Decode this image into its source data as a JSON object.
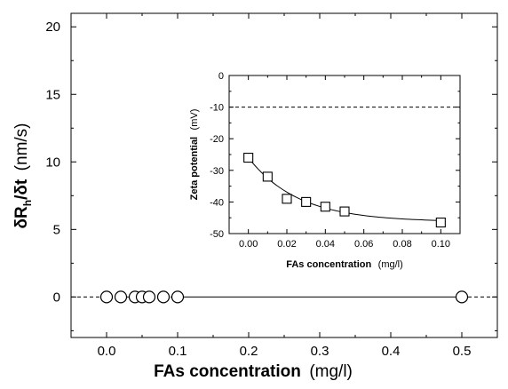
{
  "chart_data": [
    {
      "type": "scatter",
      "xlabel_bold": "FAs concentration",
      "xlabel_unit": "(mg/l)",
      "ylabel_main": "δR",
      "ylabel_sub": "h",
      "ylabel_rest": "/δt",
      "ylabel_unit": "(nm/s)",
      "xlim": [
        -0.05,
        0.55
      ],
      "ylim": [
        -3,
        21
      ],
      "xticks": [
        "0.0",
        "0.1",
        "0.2",
        "0.3",
        "0.4",
        "0.5"
      ],
      "yticks": [
        "0",
        "5",
        "10",
        "15",
        "20"
      ],
      "marker": "circle",
      "reference_line": 0,
      "series": [
        {
          "x": [
            0.0,
            0.02,
            0.04,
            0.05,
            0.06,
            0.08,
            0.1,
            0.5
          ],
          "y": [
            0,
            0,
            0,
            0,
            0,
            0,
            0,
            0
          ]
        }
      ]
    },
    {
      "type": "scatter",
      "inset": true,
      "xlabel_bold": "FAs concentration",
      "xlabel_unit": "(mg/l)",
      "ylabel_bold": "Zeta potential",
      "ylabel_unit": "(mV)",
      "xlim": [
        -0.01,
        0.11
      ],
      "ylim": [
        -50,
        0
      ],
      "xticks": [
        "0.00",
        "0.02",
        "0.04",
        "0.06",
        "0.08",
        "0.10"
      ],
      "yticks": [
        "0",
        "-10",
        "-20",
        "-30",
        "-40",
        "-50"
      ],
      "marker": "square",
      "reference_line": -10,
      "fit_curve": true,
      "series": [
        {
          "x": [
            0.0,
            0.01,
            0.02,
            0.03,
            0.04,
            0.05,
            0.1
          ],
          "y": [
            -26,
            -32,
            -39,
            -40,
            -41.5,
            -43,
            -46.5
          ]
        }
      ]
    }
  ]
}
